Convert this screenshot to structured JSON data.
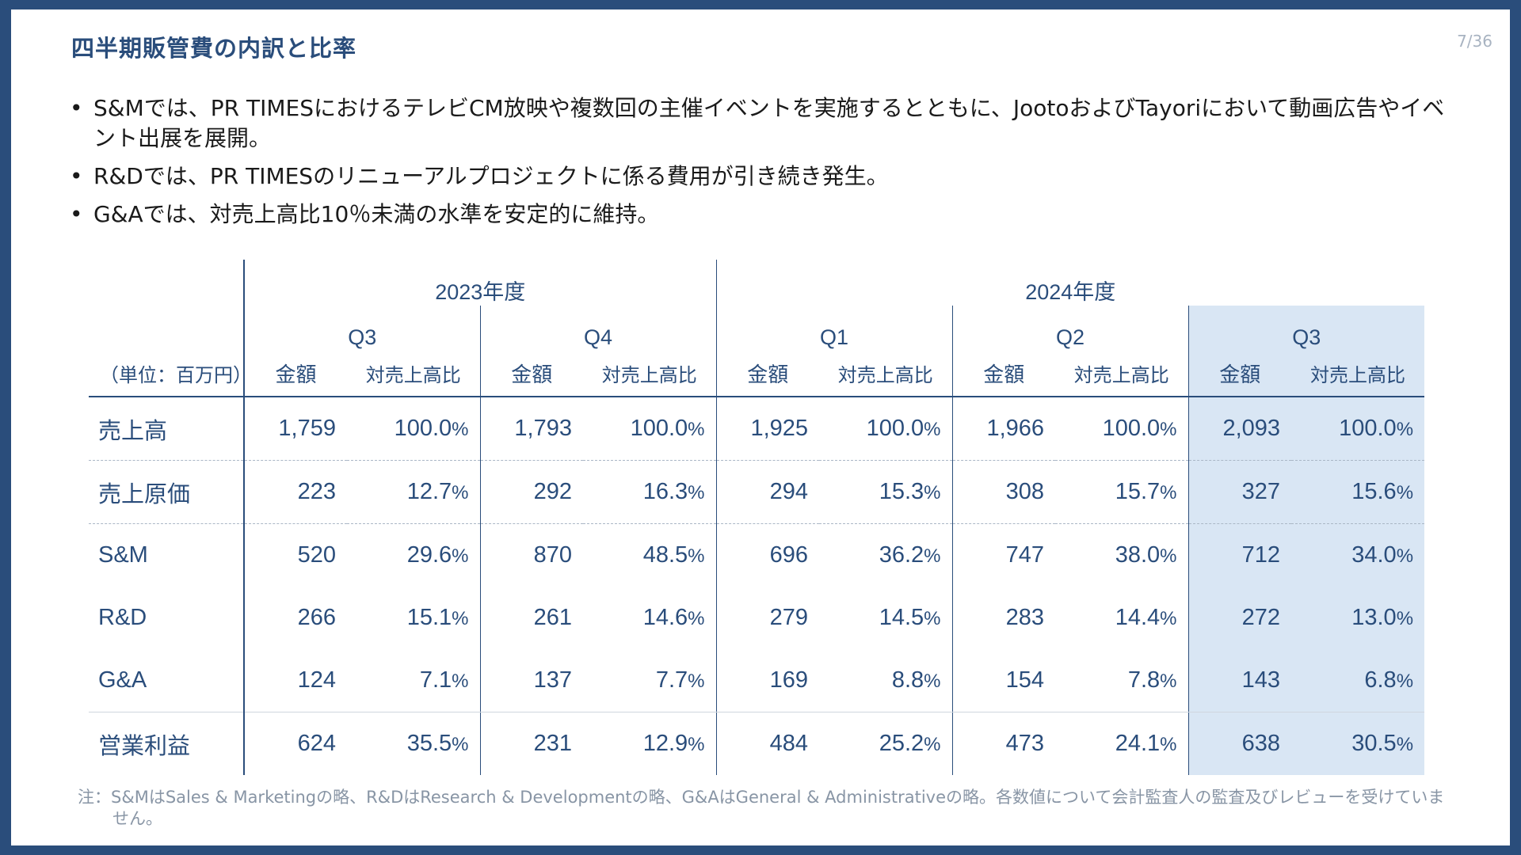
{
  "slide": {
    "title": "四半期販管費の内訳と比率",
    "page_number": "7/36"
  },
  "bullets": [
    "S&Mでは、PR TIMESにおけるテレビCM放映や複数回の主催イベントを実施するとともに、JootoおよびTayoriにおいて動画広告やイベント出展を展開。",
    "R&Dでは、PR TIMESのリニューアルプロジェクトに係る費用が引き続き発生。",
    "G&Aでは、対売上高比10％未満の水準を安定的に維持。"
  ],
  "table": {
    "unit_label": "（単位：百万円）",
    "fiscal_years": [
      "2023年度",
      "2024年度"
    ],
    "quarters": [
      "Q3",
      "Q4",
      "Q1",
      "Q2",
      "Q3"
    ],
    "amount_header": "金額",
    "ratio_header": "対売上高比",
    "highlight_color": "#d9e6f4",
    "rows": [
      {
        "label": "売上高",
        "cells": [
          [
            "1,759",
            "100.0"
          ],
          [
            "1,793",
            "100.0"
          ],
          [
            "1,925",
            "100.0"
          ],
          [
            "1,966",
            "100.0"
          ],
          [
            "2,093",
            "100.0"
          ]
        ]
      },
      {
        "label": "売上原価",
        "cells": [
          [
            "223",
            "12.7"
          ],
          [
            "292",
            "16.3"
          ],
          [
            "294",
            "15.3"
          ],
          [
            "308",
            "15.7"
          ],
          [
            "327",
            "15.6"
          ]
        ]
      },
      {
        "label": "S&M",
        "cells": [
          [
            "520",
            "29.6"
          ],
          [
            "870",
            "48.5"
          ],
          [
            "696",
            "36.2"
          ],
          [
            "747",
            "38.0"
          ],
          [
            "712",
            "34.0"
          ]
        ]
      },
      {
        "label": "R&D",
        "cells": [
          [
            "266",
            "15.1"
          ],
          [
            "261",
            "14.6"
          ],
          [
            "279",
            "14.5"
          ],
          [
            "283",
            "14.4"
          ],
          [
            "272",
            "13.0"
          ]
        ]
      },
      {
        "label": "G&A",
        "cells": [
          [
            "124",
            "7.1"
          ],
          [
            "137",
            "7.7"
          ],
          [
            "169",
            "8.8"
          ],
          [
            "154",
            "7.8"
          ],
          [
            "143",
            "6.8"
          ]
        ]
      },
      {
        "label": "営業利益",
        "cells": [
          [
            "624",
            "35.5"
          ],
          [
            "231",
            "12.9"
          ],
          [
            "484",
            "25.2"
          ],
          [
            "473",
            "24.1"
          ],
          [
            "638",
            "30.5"
          ]
        ]
      }
    ],
    "percent_sign": "%"
  },
  "footnote": "注：S&MはSales & Marketingの略、R&DはResearch & Developmentの略、G&AはGeneral & Administrativeの略。各数値について会計監査人の監査及びレビューを受けていません。"
}
